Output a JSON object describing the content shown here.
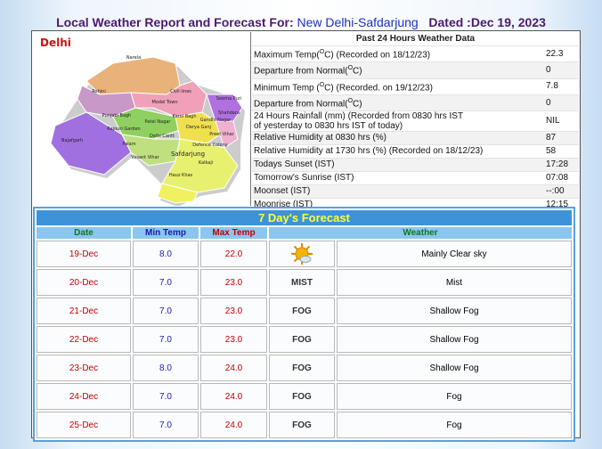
{
  "header": {
    "title": "Local Weather Report and Forecast For:",
    "station": "New Delhi-Safdarjung",
    "dated": "Dated :Dec 19, 2023"
  },
  "map": {
    "title": "Delhi",
    "labels": [
      "Narela",
      "Rohini",
      "Model Town",
      "Civil lines",
      "Seema Puri",
      "Shahdara",
      "Punjabi Bagh",
      "Karol Bagh",
      "Patel Nagar",
      "Darya Ganj",
      "Preet Vihar",
      "Gandhi Nagar",
      "Rajouri Garden",
      "Najafgarh",
      "Delhi Cantt",
      "Palam",
      "Vasant Vihar",
      "Safdarjung",
      "Defence Colony",
      "Kalkaji",
      "Hauz Khas"
    ]
  },
  "past_24h": {
    "title": "Past 24 Hours Weather Data",
    "rows": [
      {
        "label_parts": [
          "Maximum Temp(",
          "O",
          "C) (Recorded on 18/12/23)"
        ],
        "value": "22.3"
      },
      {
        "label_parts": [
          "Departure from Normal(",
          "O",
          "C)"
        ],
        "value": "0"
      },
      {
        "label_parts": [
          "Minimum Temp (",
          "O",
          "C) (Recorded. on 19/12/23)"
        ],
        "value": "7.8"
      },
      {
        "label_parts": [
          "Departure from Normal(",
          "O",
          "C)"
        ],
        "value": "0"
      },
      {
        "label_lines": [
          "24 Hours Rainfall (mm) (Recorded from 0830 hrs IST",
          "of yesterday to 0830 hrs IST of today)"
        ],
        "value": "NIL"
      },
      {
        "label": "Relative Humidity at 0830 hrs (%)",
        "value": "87"
      },
      {
        "label": "Relative Humidity at 1730 hrs (%) (Recorded on 18/12/23)",
        "value": "58"
      },
      {
        "label": "Todays Sunset (IST)",
        "value": "17:28"
      },
      {
        "label": "Tomorrow's Sunrise (IST)",
        "value": "07:08"
      },
      {
        "label": "Moonset (IST)",
        "value": "--:00"
      },
      {
        "label": "Moonrise (IST)",
        "value": "12:15"
      }
    ]
  },
  "forecast": {
    "title": "7 Day's Forecast",
    "headers": [
      "Date",
      "Min Temp",
      "Max Temp",
      "Weather"
    ],
    "rows": [
      {
        "date": "19-Dec",
        "min": "8.0",
        "max": "22.0",
        "weather": "Mainly Clear sky"
      },
      {
        "date": "20-Dec",
        "min": "7.0",
        "max": "23.0",
        "icon": "MIST",
        "weather": "Mist"
      },
      {
        "date": "21-Dec",
        "min": "7.0",
        "max": "23.0",
        "icon": "FOG",
        "weather": "Shallow Fog"
      },
      {
        "date": "22-Dec",
        "min": "7.0",
        "max": "23.0",
        "icon": "FOG",
        "weather": "Shallow Fog"
      },
      {
        "date": "23-Dec",
        "min": "8.0",
        "max": "24.0",
        "icon": "FOG",
        "weather": "Shallow Fog"
      },
      {
        "date": "24-Dec",
        "min": "7.0",
        "max": "24.0",
        "icon": "FOG",
        "weather": "Fog"
      },
      {
        "date": "25-Dec",
        "min": "7.0",
        "max": "24.0",
        "icon": "FOG",
        "weather": "Fog"
      }
    ]
  }
}
